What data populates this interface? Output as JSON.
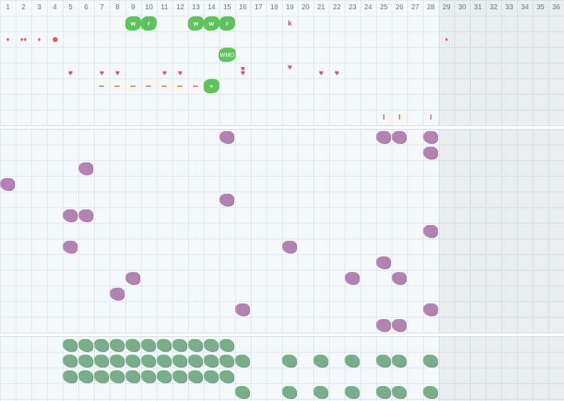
{
  "calendar": {
    "day_numbers": [
      "1",
      "2",
      "3",
      "4",
      "5",
      "6",
      "7",
      "8",
      "9",
      "10",
      "11",
      "12",
      "13",
      "14",
      "15",
      "16",
      "17",
      "18",
      "19",
      "20",
      "21",
      "22",
      "23",
      "24",
      "25",
      "26",
      "27",
      "28",
      "29",
      "30",
      "31",
      "32",
      "33",
      "34",
      "35",
      "36"
    ],
    "current_day": 28
  },
  "symptoms": {
    "green_badges": [
      {
        "day": 9,
        "label": "w"
      },
      {
        "day": 10,
        "label": "r"
      },
      {
        "day": 13,
        "label": "w"
      },
      {
        "day": 14,
        "label": "w"
      },
      {
        "day": 15,
        "label": "r"
      },
      {
        "day": 15,
        "label": "WMO"
      },
      {
        "day": 14,
        "label": "+"
      }
    ],
    "k_mark": {
      "day": 19,
      "label": "k"
    }
  },
  "flow_marks": [
    {
      "day": 1,
      "type": "drop"
    },
    {
      "day": 2,
      "type": "drop-double"
    },
    {
      "day": 3,
      "type": "drop"
    },
    {
      "day": 4,
      "type": "dot"
    },
    {
      "day": 29,
      "type": "drop"
    }
  ],
  "hearts": [
    5,
    7,
    8,
    11,
    12,
    16,
    19,
    21,
    22
  ],
  "dashes": [
    7,
    8,
    9,
    10,
    11,
    12,
    13
  ],
  "ticks": [
    25,
    26,
    28
  ],
  "purple_marks": [
    {
      "day": 15,
      "row": 0
    },
    {
      "day": 25,
      "row": 0
    },
    {
      "day": 26,
      "row": 0
    },
    {
      "day": 28,
      "row": 0
    },
    {
      "day": 28,
      "row": 1
    },
    {
      "day": 6,
      "row": 2
    },
    {
      "day": 1,
      "row": 3
    },
    {
      "day": 15,
      "row": 4
    },
    {
      "day": 5,
      "row": 5
    },
    {
      "day": 6,
      "row": 5
    },
    {
      "day": 28,
      "row": 6
    },
    {
      "day": 5,
      "row": 7
    },
    {
      "day": 19,
      "row": 7
    },
    {
      "day": 25,
      "row": 8
    },
    {
      "day": 9,
      "row": 9
    },
    {
      "day": 23,
      "row": 9
    },
    {
      "day": 26,
      "row": 9
    },
    {
      "day": 8,
      "row": 10
    },
    {
      "day": 16,
      "row": 11
    },
    {
      "day": 28,
      "row": 11
    },
    {
      "day": 25,
      "row": 12
    },
    {
      "day": 26,
      "row": 12
    }
  ],
  "green_marks": [
    {
      "row": 0,
      "days": [
        5,
        6,
        7,
        8,
        9,
        10,
        11,
        12,
        13,
        14,
        15
      ]
    },
    {
      "row": 1,
      "days": [
        5,
        6,
        7,
        8,
        9,
        10,
        11,
        12,
        13,
        14,
        15,
        16,
        19,
        21,
        23,
        25,
        26,
        28
      ]
    },
    {
      "row": 2,
      "days": [
        5,
        6,
        7,
        8,
        9,
        10,
        11,
        12,
        13,
        14,
        15
      ]
    },
    {
      "row": 3,
      "days": [
        16,
        19,
        21,
        23,
        25,
        26,
        28
      ]
    }
  ],
  "colors": {
    "green_badge": "#5cc45a",
    "purple": "#b283b0",
    "dark_green": "#7aae8a",
    "heart": "#e0507a",
    "dash": "#f08a3a",
    "drop": "#e85a5a"
  }
}
